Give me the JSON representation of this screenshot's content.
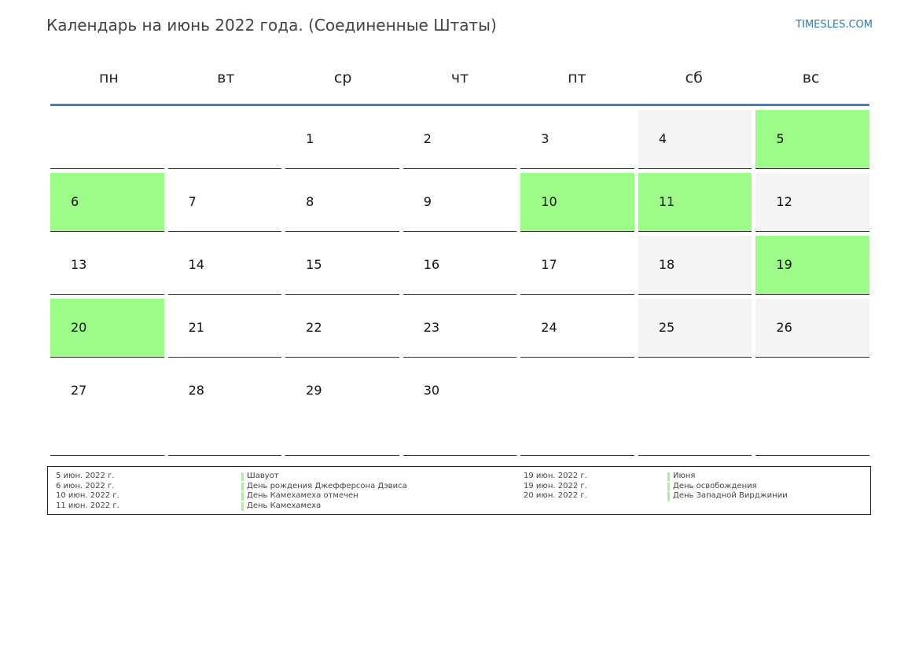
{
  "header": {
    "title": "Календарь на июнь 2022 года. (Соединенные Штаты)",
    "site": "TIMESLES.COM"
  },
  "colors": {
    "holiday": "#9dfc89",
    "weekend": "#f4f4f4",
    "header_rule": "#5b7aa6",
    "site_link": "#2b7bb9"
  },
  "weekdays": [
    "пн",
    "вт",
    "ср",
    "чт",
    "пт",
    "сб",
    "вс"
  ],
  "weeks": [
    [
      "",
      "",
      "1",
      "2",
      "3",
      "4",
      "5"
    ],
    [
      "6",
      "7",
      "8",
      "9",
      "10",
      "11",
      "12"
    ],
    [
      "13",
      "14",
      "15",
      "16",
      "17",
      "18",
      "19"
    ],
    [
      "20",
      "21",
      "22",
      "23",
      "24",
      "25",
      "26"
    ],
    [
      "27",
      "28",
      "29",
      "30",
      "",
      "",
      ""
    ]
  ],
  "holidays_left": [
    {
      "date": "5 июн. 2022 г.",
      "name": "Шавуот"
    },
    {
      "date": "6 июн. 2022 г.",
      "name": "День рождения Джефферсона Дэвиса"
    },
    {
      "date": "10 июн. 2022 г.",
      "name": "День Камехамеха отмечен"
    },
    {
      "date": "11 июн. 2022 г.",
      "name": "День Камехамеха"
    }
  ],
  "holidays_right": [
    {
      "date": "19 июн. 2022 г.",
      "name": "Июня"
    },
    {
      "date": "19 июн. 2022 г.",
      "name": "День освобождения"
    },
    {
      "date": "20 июн. 2022 г.",
      "name": "День Западной Вирджинии"
    }
  ]
}
